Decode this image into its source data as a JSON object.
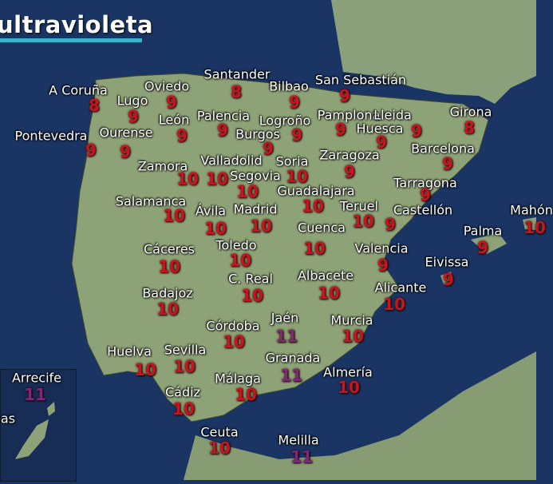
{
  "title": "ultravioleta",
  "colors": {
    "sea": "#1a3564",
    "land": "#8ea277",
    "value_high": "#c8141e",
    "value_extreme": "#7a2a78",
    "title_underline": "#3bb3c9"
  },
  "cities": [
    {
      "name": "A Coruña",
      "value": "8",
      "level": "high"
    },
    {
      "name": "Lugo",
      "value": "9",
      "level": "high"
    },
    {
      "name": "Oviedo",
      "value": "9",
      "level": "high"
    },
    {
      "name": "Santander",
      "value": "8",
      "level": "high"
    },
    {
      "name": "Bilbao",
      "value": "9",
      "level": "high"
    },
    {
      "name": "San Sebastián",
      "value": "9",
      "level": "high"
    },
    {
      "name": "Pontevedra",
      "value": "9",
      "level": "high"
    },
    {
      "name": "Ourense",
      "value": "9",
      "level": "high"
    },
    {
      "name": "León",
      "value": "9",
      "level": "high"
    },
    {
      "name": "Palencia",
      "value": "9",
      "level": "high"
    },
    {
      "name": "Logroño",
      "value": "9",
      "level": "high"
    },
    {
      "name": "Burgos",
      "value": "9",
      "level": "high"
    },
    {
      "name": "Pamplona",
      "value": "9",
      "level": "high"
    },
    {
      "name": "Lleida",
      "value": "9",
      "level": "high"
    },
    {
      "name": "Huesca",
      "value": "9",
      "level": "high"
    },
    {
      "name": "Girona",
      "value": "8",
      "level": "high"
    },
    {
      "name": "Barcelona",
      "value": "9",
      "level": "high"
    },
    {
      "name": "Zaragoza",
      "value": "9",
      "level": "high"
    },
    {
      "name": "Zamora",
      "value": "10",
      "level": "high"
    },
    {
      "name": "Valladolid",
      "value": "10",
      "level": "high"
    },
    {
      "name": "Segovia",
      "value": "10",
      "level": "high"
    },
    {
      "name": "Soria",
      "value": "10",
      "level": "high"
    },
    {
      "name": "Guadalajara",
      "value": "10",
      "level": "high"
    },
    {
      "name": "Tarragona",
      "value": "9",
      "level": "high"
    },
    {
      "name": "Salamanca",
      "value": "10",
      "level": "high"
    },
    {
      "name": "Ávila",
      "value": "10",
      "level": "high"
    },
    {
      "name": "Madrid",
      "value": "10",
      "level": "high"
    },
    {
      "name": "Teruel",
      "value": "10",
      "level": "high"
    },
    {
      "name": "Castellón",
      "value": "9",
      "level": "high"
    },
    {
      "name": "Mahón",
      "value": "10",
      "level": "high"
    },
    {
      "name": "Cuenca",
      "value": "10",
      "level": "high"
    },
    {
      "name": "Palma",
      "value": "9",
      "level": "high"
    },
    {
      "name": "Cáceres",
      "value": "10",
      "level": "high"
    },
    {
      "name": "Toledo",
      "value": "10",
      "level": "high"
    },
    {
      "name": "Valencia",
      "value": "9",
      "level": "high"
    },
    {
      "name": "Eivissa",
      "value": "9",
      "level": "high"
    },
    {
      "name": "C. Real",
      "value": "10",
      "level": "high"
    },
    {
      "name": "Albacete",
      "value": "10",
      "level": "high"
    },
    {
      "name": "Badajoz",
      "value": "10",
      "level": "high"
    },
    {
      "name": "Alicante",
      "value": "10",
      "level": "high"
    },
    {
      "name": "Jaén",
      "value": "11",
      "level": "extreme"
    },
    {
      "name": "Córdoba",
      "value": "10",
      "level": "high"
    },
    {
      "name": "Murcia",
      "value": "10",
      "level": "high"
    },
    {
      "name": "Huelva",
      "value": "10",
      "level": "high"
    },
    {
      "name": "Sevilla",
      "value": "10",
      "level": "high"
    },
    {
      "name": "Granada",
      "value": "11",
      "level": "extreme"
    },
    {
      "name": "Almería",
      "value": "10",
      "level": "high"
    },
    {
      "name": "Málaga",
      "value": "10",
      "level": "high"
    },
    {
      "name": "Cádiz",
      "value": "10",
      "level": "high"
    },
    {
      "name": "Ceuta",
      "value": "10",
      "level": "high"
    },
    {
      "name": "Melilla",
      "value": "11",
      "level": "extreme"
    },
    {
      "name": "Arrecife",
      "value": "11",
      "level": "extreme"
    }
  ],
  "inset": {
    "partial_label": "as"
  }
}
